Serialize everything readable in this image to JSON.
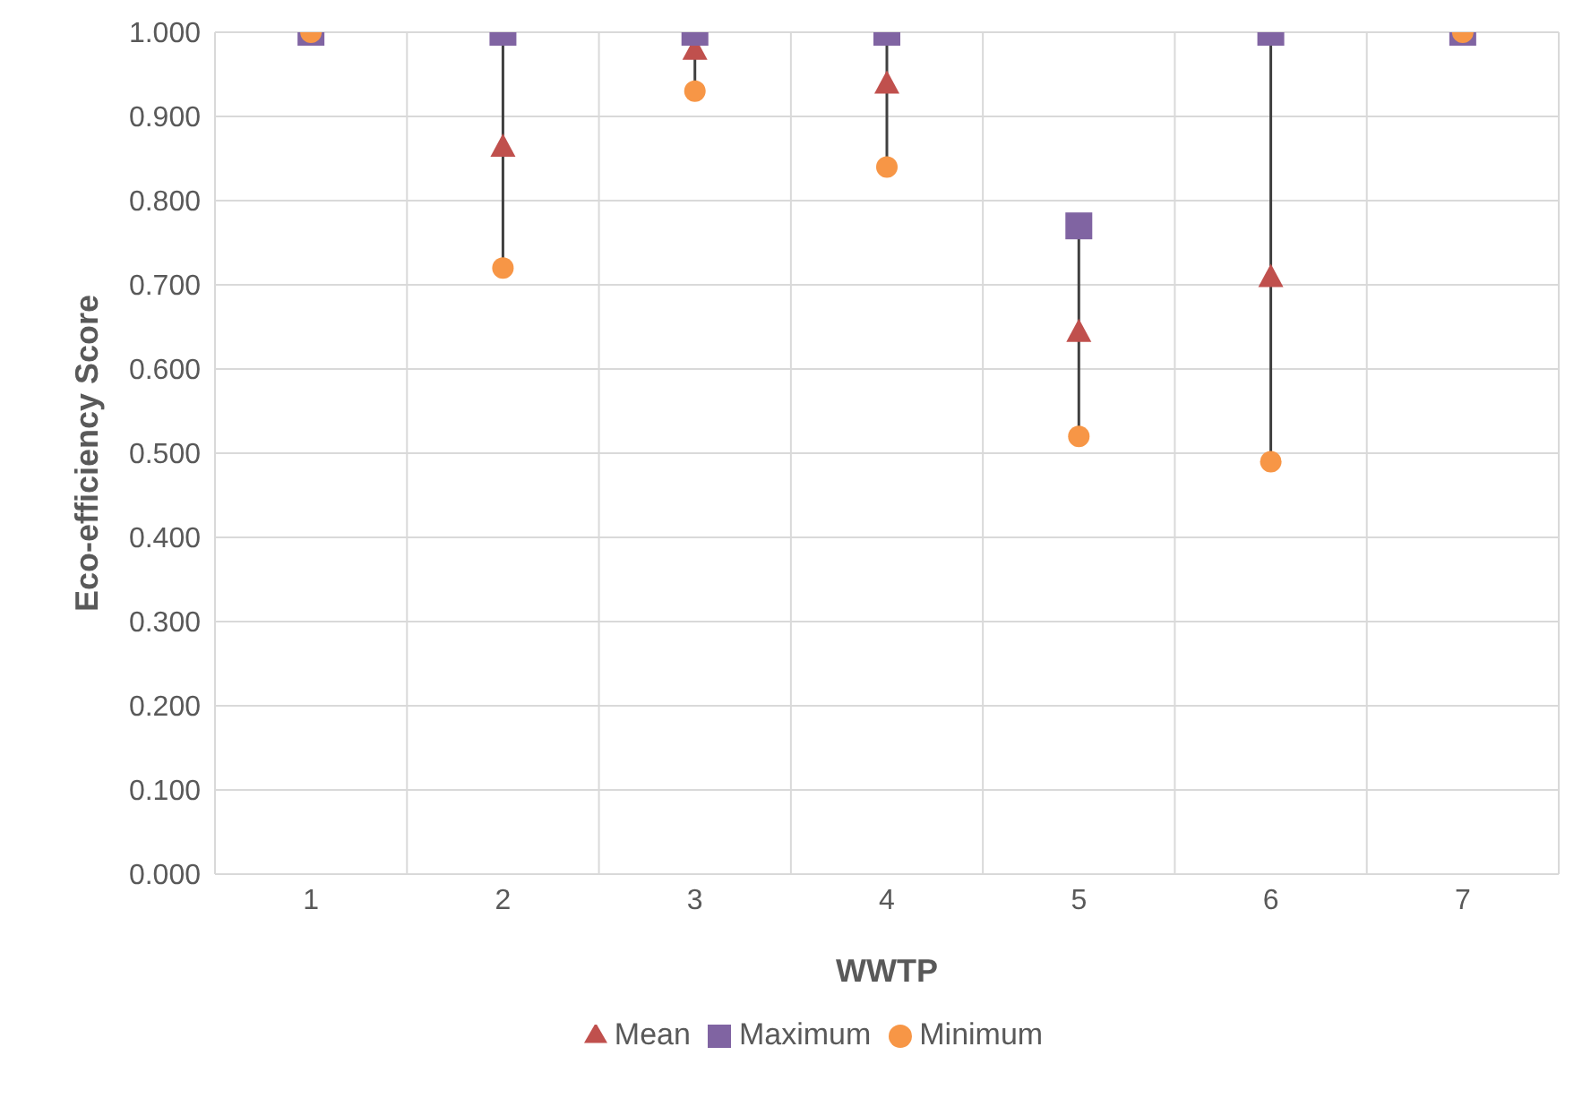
{
  "chart_data": {
    "type": "scatter",
    "xlabel": "WWTP",
    "ylabel": "Eco-efficiency Score",
    "categories": [
      "1",
      "2",
      "3",
      "4",
      "5",
      "6",
      "7"
    ],
    "series": [
      {
        "name": "Mean",
        "color": "#c0504d",
        "marker": "triangle",
        "values": [
          null,
          0.865,
          0.98,
          0.94,
          0.645,
          0.71,
          null
        ]
      },
      {
        "name": "Maximum",
        "color": "#8064a2",
        "marker": "square",
        "values": [
          1.0,
          1.0,
          1.0,
          1.0,
          0.77,
          1.0,
          1.0
        ]
      },
      {
        "name": "Minimum",
        "color": "#f79646",
        "marker": "circle",
        "values": [
          1.0,
          0.72,
          0.93,
          0.84,
          0.52,
          0.49,
          1.0
        ]
      }
    ],
    "ylim": [
      0,
      1
    ],
    "yticks": [
      {
        "value": 0,
        "label": "0.000"
      },
      {
        "value": 0.1,
        "label": "0.100"
      },
      {
        "value": 0.2,
        "label": "0.200"
      },
      {
        "value": 0.3,
        "label": "0.300"
      },
      {
        "value": 0.4,
        "label": "0.400"
      },
      {
        "value": 0.5,
        "label": "0.500"
      },
      {
        "value": 0.6,
        "label": "0.600"
      },
      {
        "value": 0.7,
        "label": "0.700"
      },
      {
        "value": 0.8,
        "label": "0.800"
      },
      {
        "value": 0.9,
        "label": "0.900"
      },
      {
        "value": 1,
        "label": "1.000"
      }
    ],
    "grid": true,
    "legend": "bottom"
  }
}
